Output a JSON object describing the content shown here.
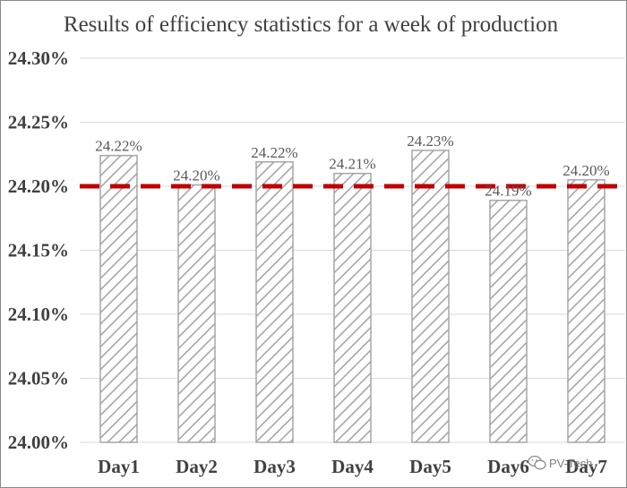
{
  "chart_data": {
    "type": "bar",
    "title": "Results of efficiency  statistics for a week of production",
    "xlabel": "",
    "ylabel": "",
    "categories": [
      "Day1",
      "Day2",
      "Day3",
      "Day4",
      "Day5",
      "Day6",
      "Day7"
    ],
    "values": [
      24.224,
      24.201,
      24.219,
      24.21,
      24.228,
      24.189,
      24.205
    ],
    "data_labels": [
      "24.22%",
      "24.20%",
      "24.22%",
      "24.21%",
      "24.23%",
      "24.19%",
      "24.20%"
    ],
    "yticks": [
      "24.00%",
      "24.05%",
      "24.10%",
      "24.15%",
      "24.20%",
      "24.25%",
      "24.30%"
    ],
    "ylim": [
      24.0,
      24.3
    ],
    "reference_line": 24.2,
    "grid": true,
    "colors": {
      "bar_hatch": "#a6a6a6",
      "bar_border": "#a6a6a6",
      "reference_line": "#c00000",
      "grid": "#d9d9d9",
      "text": "#404040"
    }
  },
  "watermark": "PV-Tech"
}
